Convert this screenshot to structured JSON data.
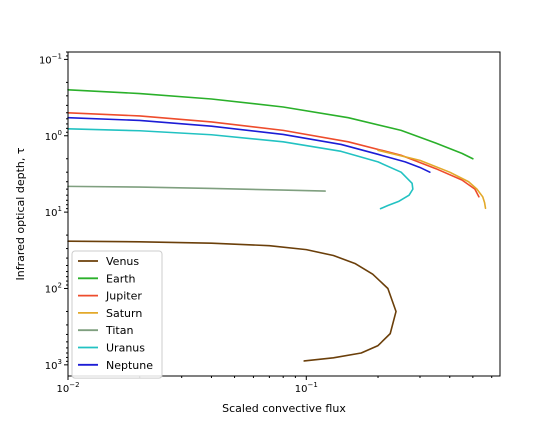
{
  "chart_data": {
    "type": "line",
    "xlabel": "Scaled convective flux",
    "ylabel": "Infrared optical depth, τ",
    "xscale": "log",
    "yscale": "log",
    "y_inverted": true,
    "xlim": [
      0.01,
      0.65
    ],
    "ylim": [
      0.08,
      1400
    ],
    "grid": false,
    "legend": "bottom-left",
    "xticks": [
      {
        "value": 0.01,
        "base": "10",
        "exp": "−2"
      },
      {
        "value": 0.1,
        "base": "10",
        "exp": "−1"
      }
    ],
    "yticks": [
      {
        "value": 0.1,
        "base": "10",
        "exp": "−1"
      },
      {
        "value": 1,
        "base": "10",
        "exp": "0"
      },
      {
        "value": 10,
        "base": "10",
        "exp": "1"
      },
      {
        "value": 100,
        "base": "10",
        "exp": "2"
      },
      {
        "value": 1000,
        "base": "10",
        "exp": "3"
      }
    ],
    "series": [
      {
        "name": "Venus",
        "color": "#6b3f0a",
        "points": [
          [
            0.01,
            24.0
          ],
          [
            0.02,
            24.5
          ],
          [
            0.04,
            25.5
          ],
          [
            0.07,
            27.5
          ],
          [
            0.1,
            31.0
          ],
          [
            0.13,
            37.0
          ],
          [
            0.16,
            47.0
          ],
          [
            0.19,
            65.0
          ],
          [
            0.22,
            100.0
          ],
          [
            0.238,
            200.0
          ],
          [
            0.225,
            390.0
          ],
          [
            0.2,
            560.0
          ],
          [
            0.17,
            700.0
          ],
          [
            0.13,
            810.0
          ],
          [
            0.098,
            890.0
          ]
        ]
      },
      {
        "name": "Earth",
        "color": "#2ab02a",
        "points": [
          [
            0.01,
            0.25
          ],
          [
            0.02,
            0.28
          ],
          [
            0.04,
            0.33
          ],
          [
            0.08,
            0.42
          ],
          [
            0.15,
            0.58
          ],
          [
            0.25,
            0.85
          ],
          [
            0.35,
            1.25
          ],
          [
            0.45,
            1.7
          ],
          [
            0.5,
            2.0
          ]
        ]
      },
      {
        "name": "Jupiter",
        "color": "#ee4c2c",
        "points": [
          [
            0.01,
            0.5
          ],
          [
            0.02,
            0.55
          ],
          [
            0.04,
            0.66
          ],
          [
            0.08,
            0.85
          ],
          [
            0.15,
            1.2
          ],
          [
            0.25,
            1.8
          ],
          [
            0.35,
            2.7
          ],
          [
            0.45,
            3.8
          ],
          [
            0.51,
            5.0
          ],
          [
            0.53,
            6.3
          ]
        ]
      },
      {
        "name": "Saturn",
        "color": "#e3a92a",
        "points": [
          [
            0.2,
            1.55
          ],
          [
            0.3,
            2.1
          ],
          [
            0.4,
            3.0
          ],
          [
            0.48,
            4.0
          ],
          [
            0.52,
            5.0
          ],
          [
            0.55,
            6.3
          ],
          [
            0.56,
            7.5
          ],
          [
            0.565,
            8.9
          ]
        ]
      },
      {
        "name": "Titan",
        "color": "#7f9f7f",
        "points": [
          [
            0.01,
            4.6
          ],
          [
            0.02,
            4.7
          ],
          [
            0.04,
            4.9
          ],
          [
            0.08,
            5.15
          ],
          [
            0.12,
            5.3
          ]
        ]
      },
      {
        "name": "Uranus",
        "color": "#22c2c2",
        "points": [
          [
            0.01,
            0.81
          ],
          [
            0.02,
            0.86
          ],
          [
            0.04,
            0.97
          ],
          [
            0.08,
            1.2
          ],
          [
            0.14,
            1.6
          ],
          [
            0.2,
            2.2
          ],
          [
            0.25,
            3.0
          ],
          [
            0.278,
            4.2
          ],
          [
            0.28,
            5.0
          ],
          [
            0.27,
            6.0
          ],
          [
            0.245,
            7.2
          ],
          [
            0.22,
            8.2
          ],
          [
            0.205,
            9.0
          ]
        ]
      },
      {
        "name": "Neptune",
        "color": "#1c1cd6",
        "points": [
          [
            0.01,
            0.58
          ],
          [
            0.02,
            0.63
          ],
          [
            0.04,
            0.75
          ],
          [
            0.08,
            0.96
          ],
          [
            0.14,
            1.3
          ],
          [
            0.2,
            1.75
          ],
          [
            0.26,
            2.2
          ],
          [
            0.3,
            2.6
          ],
          [
            0.33,
            3.0
          ]
        ]
      }
    ]
  }
}
